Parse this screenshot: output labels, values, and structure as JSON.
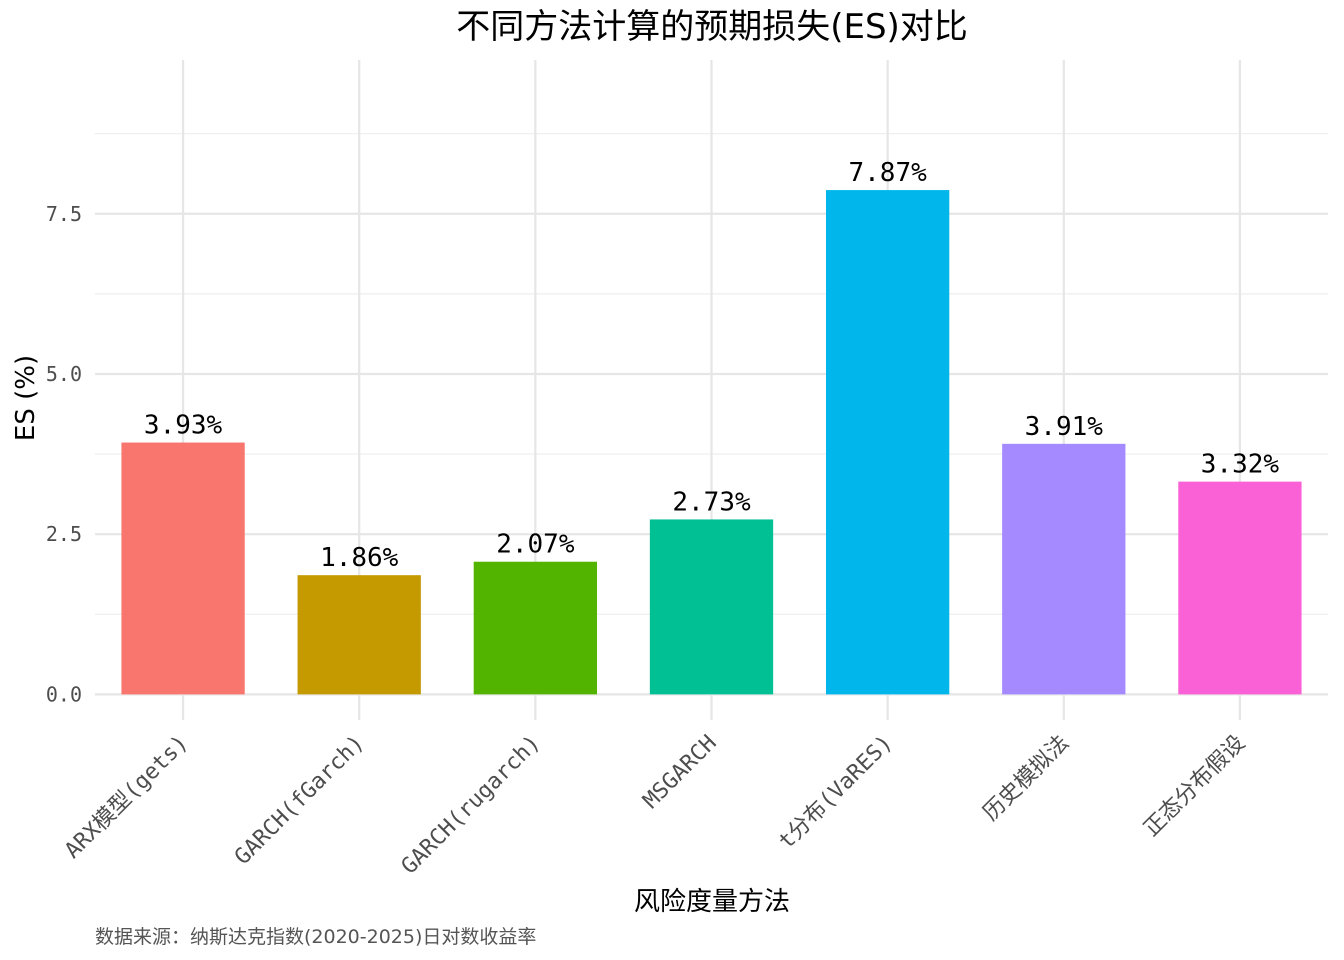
{
  "chart_data": {
    "type": "bar",
    "title": "不同方法计算的预期损失(ES)对比",
    "xlabel": "风险度量方法",
    "ylabel": "ES (%)",
    "caption": "数据来源：纳斯达克指数(2020-2025)日对数收益率",
    "categories": [
      "ARX模型(gets)",
      "GARCH(fGarch)",
      "GARCH(rugarch)",
      "MSGARCH",
      "t分布(VaRES)",
      "历史模拟法",
      "正态分布假设"
    ],
    "values": [
      3.93,
      1.86,
      2.07,
      2.73,
      7.87,
      3.91,
      3.32
    ],
    "labels": [
      "3.93%",
      "1.86%",
      "2.07%",
      "2.73%",
      "7.87%",
      "3.91%",
      "3.32%"
    ],
    "colors": [
      "#F8766D",
      "#C49A00",
      "#53B400",
      "#00C094",
      "#00B6EB",
      "#A58AFF",
      "#FB61D7"
    ],
    "ylim": [
      -0.4,
      9.9
    ],
    "yticks": [
      0.0,
      2.5,
      5.0,
      7.5
    ],
    "ytick_labels": [
      "0.0",
      "2.5",
      "5.0",
      "7.5"
    ],
    "grid": true,
    "legend": "none"
  }
}
